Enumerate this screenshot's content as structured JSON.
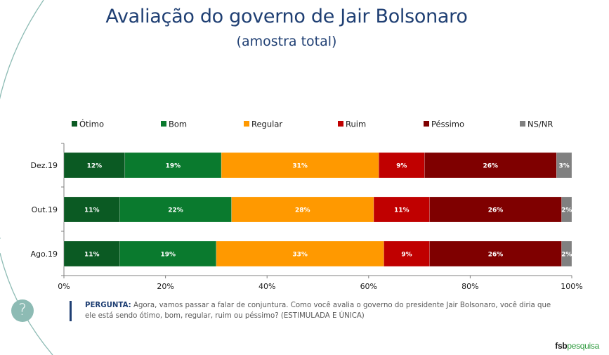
{
  "header": {
    "title": "Avaliação do governo de Jair Bolsonaro",
    "subtitle": "(amostra total)"
  },
  "chart_data": {
    "type": "bar",
    "orientation": "horizontal",
    "stacked": true,
    "title": "Avaliação do governo de Jair Bolsonaro",
    "subtitle": "(amostra total)",
    "xlabel": "",
    "ylabel": "",
    "xlim": [
      0,
      100
    ],
    "x_ticks": [
      "0%",
      "20%",
      "40%",
      "60%",
      "80%",
      "100%"
    ],
    "x_tick_values": [
      0,
      20,
      40,
      60,
      80,
      100
    ],
    "grid": false,
    "legend_position": "top",
    "categories": [
      "Dez.19",
      "Out.19",
      "Ago.19"
    ],
    "series": [
      {
        "name": "Ótimo",
        "color": "#0b5a23",
        "values": [
          12,
          11,
          11
        ]
      },
      {
        "name": "Bom",
        "color": "#0a7a2e",
        "values": [
          19,
          22,
          19
        ]
      },
      {
        "name": "Regular",
        "color": "#ff9900",
        "values": [
          31,
          28,
          33
        ]
      },
      {
        "name": "Ruim",
        "color": "#c00000",
        "values": [
          9,
          11,
          9
        ]
      },
      {
        "name": "Péssimo",
        "color": "#7f0000",
        "values": [
          26,
          26,
          26
        ]
      },
      {
        "name": "NS/NR",
        "color": "#808080",
        "values": [
          3,
          2,
          2
        ]
      }
    ],
    "value_label_suffix": "%"
  },
  "footer": {
    "question_label": "PERGUNTA:",
    "question_text": " Agora, vamos passar a falar de conjuntura. Como você avalia o governo do presidente Jair Bolsonaro, você diria que ele está sendo ótimo, bom, regular, ruim ou péssimo? (ESTIMULADA E ÚNICA)",
    "help_icon": "question-mark-icon",
    "help_glyph": "?",
    "brand_bold": "fsb",
    "brand_light": "pesquisa"
  },
  "colors": {
    "title": "#1f3f73",
    "decor_arc": "#8dbbb4"
  }
}
